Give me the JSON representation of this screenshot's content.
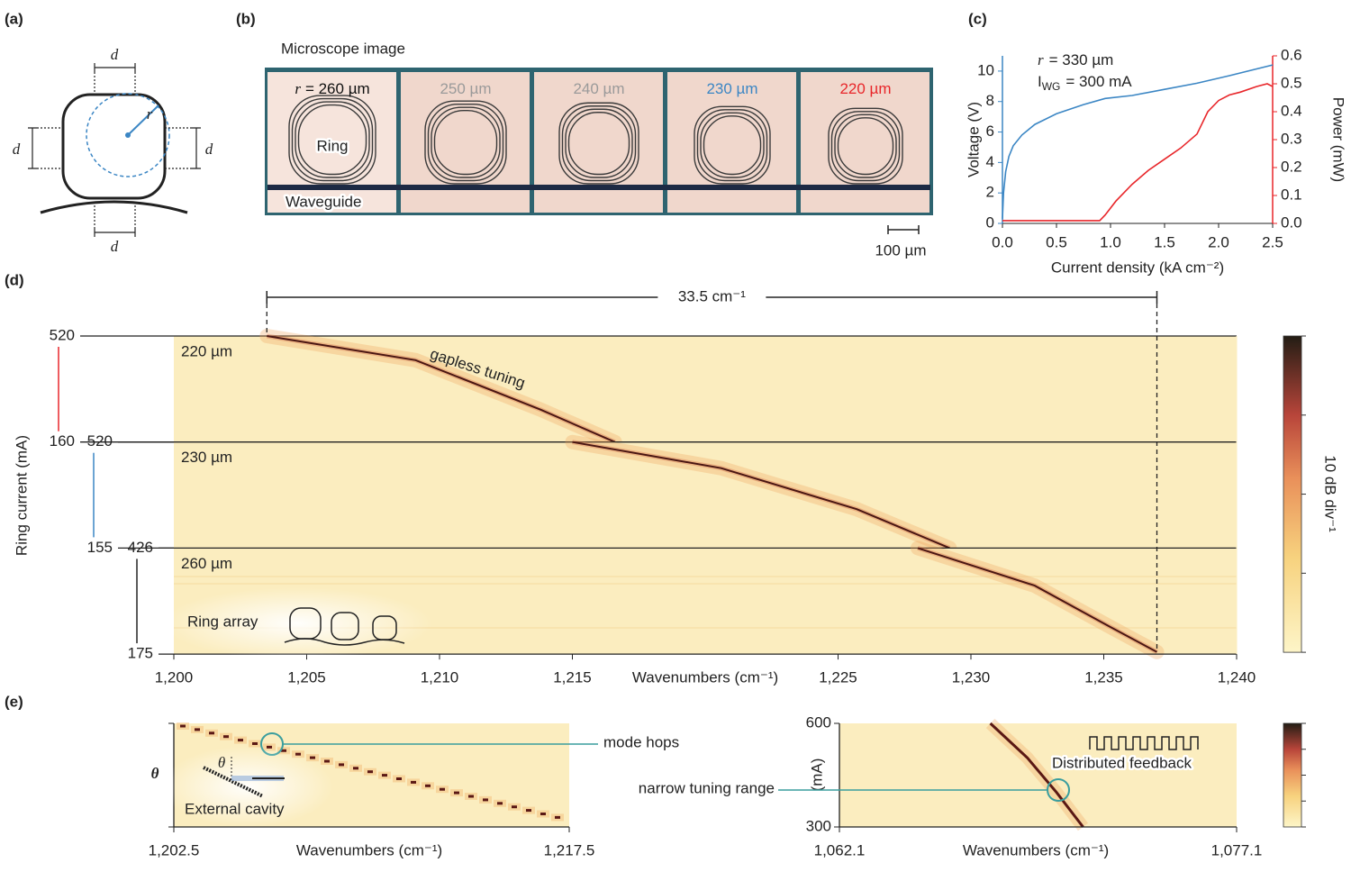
{
  "panel_labels": [
    "(a)",
    "(b)",
    "(c)",
    "(d)",
    "(e)"
  ],
  "ring_diagram": {
    "labels": [
      "d",
      "d",
      "d",
      "d",
      "r"
    ]
  },
  "microscope": {
    "title": "Microscope image",
    "radius_symbol": "r",
    "rings": [
      {
        "label": "= 260 µm",
        "color": "#111111"
      },
      {
        "label": "250 µm",
        "color": "#9a9a9a"
      },
      {
        "label": "240 µm",
        "color": "#9a9a9a"
      },
      {
        "label": "230 µm",
        "color": "#3b86c4"
      },
      {
        "label": "220 µm",
        "color": "#e8262a"
      }
    ],
    "ring_label": "Ring",
    "waveguide_label": "Waveguide",
    "scale_bar": "100 µm"
  },
  "chart_data": [
    {
      "type": "line",
      "x_label": "Current density (kA cm⁻²)",
      "y_label": "Voltage (V)",
      "y2_label": "Power (mW)",
      "annotations": [
        {
          "symbol": "r",
          "text": "= 330 µm"
        },
        {
          "symbol": "I",
          "subscript": "WG",
          "text": "= 300 mA"
        }
      ],
      "xlim": [
        0,
        2.5
      ],
      "xticks": [
        {
          "value": 0,
          "label": "0.0"
        },
        0.5,
        {
          "value": 1,
          "label": "1.0"
        },
        1.5,
        {
          "value": 2,
          "label": "2.0"
        },
        2.5
      ],
      "ylim": [
        0,
        11
      ],
      "yticks": [
        0,
        2,
        4,
        6,
        8,
        10
      ],
      "y2lim": [
        0,
        0.6
      ],
      "y2ticks": [
        {
          "value": 0,
          "label": "0.0"
        },
        0.1,
        0.2,
        0.3,
        0.4,
        0.5,
        0.6
      ],
      "series": [
        {
          "color": "#3b86c4",
          "axis": "y",
          "x": [
            0,
            0.01,
            0.03,
            0.06,
            0.1,
            0.18,
            0.3,
            0.5,
            0.75,
            0.95,
            1.2,
            1.5,
            1.8,
            2.1,
            2.5
          ],
          "values": [
            0.3,
            2.0,
            3.4,
            4.4,
            5.1,
            5.8,
            6.5,
            7.2,
            7.8,
            8.2,
            8.4,
            8.8,
            9.2,
            9.7,
            10.4
          ]
        },
        {
          "color": "#e8262a",
          "axis": "y2",
          "x": [
            0,
            0.3,
            0.6,
            0.9,
            0.95,
            1.05,
            1.2,
            1.35,
            1.5,
            1.65,
            1.8,
            1.9,
            2.0,
            2.1,
            2.2,
            2.35,
            2.45,
            2.5
          ],
          "values": [
            0.01,
            0.01,
            0.01,
            0.01,
            0.03,
            0.08,
            0.14,
            0.19,
            0.23,
            0.27,
            0.32,
            0.4,
            0.44,
            0.46,
            0.47,
            0.49,
            0.5,
            0.49
          ]
        }
      ]
    },
    {
      "type": "heatmap",
      "x_label": "Wavenumbers (cm⁻¹)",
      "y_label": "Ring current (mA)",
      "span_label": "33.5 cm⁻¹",
      "annotations": [
        "gapless tuning",
        "Ring array"
      ],
      "colorbar_label": "10 dB div⁻¹",
      "xlim": [
        1200,
        1240
      ],
      "xticks": [
        {
          "value": 1200,
          "label": "1,200"
        },
        {
          "value": 1205,
          "label": "1,205"
        },
        {
          "value": 1210,
          "label": "1,210"
        },
        {
          "value": 1215,
          "label": "1,215"
        },
        {
          "value": 1225,
          "label": "1,225"
        },
        {
          "value": 1230,
          "label": "1,230"
        },
        {
          "value": 1235,
          "label": "1,235"
        },
        {
          "value": 1240,
          "label": "1,240"
        }
      ],
      "panels": [
        {
          "name": "220 µm",
          "color": "#e8262a",
          "ylim": [
            160,
            520
          ],
          "yticks": [
            520,
            160
          ],
          "x": [
            1203.5,
            1209.1,
            1213.8,
            1216.6
          ],
          "values": [
            520,
            438,
            270,
            160
          ]
        },
        {
          "name": "230 µm",
          "color": "#3b86c4",
          "ylim": [
            155,
            520
          ],
          "yticks": [
            520,
            155
          ],
          "x": [
            1215.0,
            1220.6,
            1225.7,
            1229.2
          ],
          "values": [
            520,
            430,
            289,
            155
          ]
        },
        {
          "name": "260 µm",
          "color": "#222222",
          "ylim": [
            175,
            426
          ],
          "yticks": [
            426,
            175
          ],
          "x": [
            1228.0,
            1232.4,
            1235.2,
            1237.0
          ],
          "values": [
            426,
            337,
            241,
            180
          ]
        }
      ]
    },
    {
      "type": "heatmap",
      "x_label": "Wavenumbers (cm⁻¹)",
      "y_label": "θ",
      "inset_symbol": "θ",
      "annotations": [
        "mode hops",
        "External cavity"
      ],
      "xlim": [
        1202.5,
        1217.5
      ],
      "xticks": [
        {
          "value": 1202.5,
          "label": "1,202.5"
        },
        {
          "value": 1217.5,
          "label": "1,217.5"
        }
      ]
    },
    {
      "type": "heatmap",
      "x_label": "Wavenumbers (cm⁻¹)",
      "y_label": "(mA)",
      "annotations": [
        "narrow tuning range",
        "Distributed feedback"
      ],
      "xlim": [
        1062.1,
        1077.1
      ],
      "xticks": [
        {
          "value": 1062.1,
          "label": "1,062.1"
        },
        {
          "value": 1077.1,
          "label": "1,077.1"
        }
      ],
      "ylim": [
        300,
        600
      ],
      "yticks": [
        300,
        600
      ],
      "x": [
        1067.8,
        1069.2,
        1070.3,
        1071.3
      ],
      "values": [
        600,
        500,
        400,
        300
      ]
    }
  ]
}
